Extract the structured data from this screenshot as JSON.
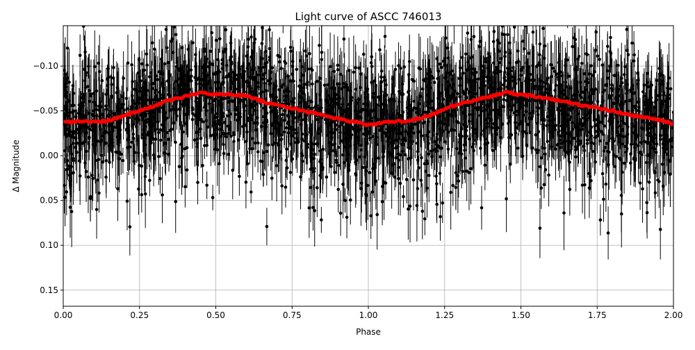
{
  "chart_data": {
    "type": "scatter",
    "title": "Light curve of ASCC 746013",
    "xlabel": "Phase",
    "ylabel": "Δ Magnitude",
    "xlim": [
      0,
      2
    ],
    "ylim": [
      0.168,
      -0.145
    ],
    "y_inverted": true,
    "grid": true,
    "xticks": [
      "0.00",
      "0.25",
      "0.50",
      "0.75",
      "1.00",
      "1.25",
      "1.50",
      "1.75",
      "2.00"
    ],
    "yticks": [
      "−0.10",
      "−0.05",
      "0.00",
      "0.05",
      "0.10",
      "0.15"
    ],
    "scatter_color": "#000000",
    "binned_color": "#ff0000",
    "binned_curve": {
      "x": [
        0,
        0.05,
        0.1,
        0.15,
        0.2,
        0.25,
        0.3,
        0.35,
        0.4,
        0.45,
        0.5,
        0.55,
        0.6,
        0.65,
        0.7,
        0.75,
        0.8,
        0.85,
        0.9,
        0.95,
        1.0,
        1.05,
        1.1,
        1.15,
        1.2,
        1.25,
        1.3,
        1.35,
        1.4,
        1.45,
        1.5,
        1.55,
        1.6,
        1.65,
        1.7,
        1.75,
        1.8,
        1.85,
        1.9,
        1.95,
        2.0
      ],
      "y": [
        -0.037,
        -0.038,
        -0.038,
        -0.039,
        -0.045,
        -0.05,
        -0.056,
        -0.062,
        -0.066,
        -0.071,
        -0.068,
        -0.068,
        -0.067,
        -0.061,
        -0.056,
        -0.053,
        -0.049,
        -0.046,
        -0.041,
        -0.038,
        -0.034,
        -0.037,
        -0.038,
        -0.04,
        -0.045,
        -0.052,
        -0.058,
        -0.062,
        -0.066,
        -0.071,
        -0.068,
        -0.066,
        -0.063,
        -0.06,
        -0.056,
        -0.053,
        -0.05,
        -0.046,
        -0.043,
        -0.04,
        -0.035
      ]
    }
  }
}
